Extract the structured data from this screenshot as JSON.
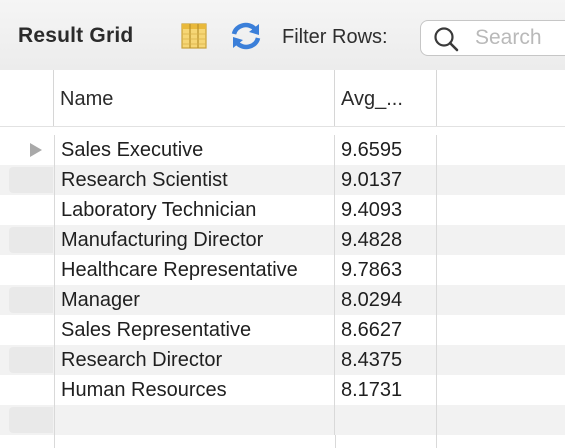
{
  "toolbar": {
    "title": "Result Grid",
    "filter_label": "Filter Rows:",
    "search_placeholder": "Search"
  },
  "columns": [
    "Name",
    "Avg_..."
  ],
  "rows": [
    {
      "name": "Sales Executive",
      "avg": "9.6595"
    },
    {
      "name": "Research Scientist",
      "avg": "9.0137"
    },
    {
      "name": "Laboratory Technician",
      "avg": "9.4093"
    },
    {
      "name": "Manufacturing Director",
      "avg": "9.4828"
    },
    {
      "name": "Healthcare Representative",
      "avg": "9.7863"
    },
    {
      "name": "Manager",
      "avg": "8.0294"
    },
    {
      "name": "Sales Representative",
      "avg": "8.6627"
    },
    {
      "name": "Research Director",
      "avg": "8.4375"
    },
    {
      "name": "Human Resources",
      "avg": "8.1731"
    }
  ],
  "icons": {
    "grid": "form-editor-icon",
    "refresh": "refresh-icon",
    "search": "search-icon",
    "current_row": "current-row-arrow-icon"
  },
  "colors": {
    "refresh_blue": "#3b7fd9",
    "grid_icon_yellow": "#f1c34a"
  }
}
